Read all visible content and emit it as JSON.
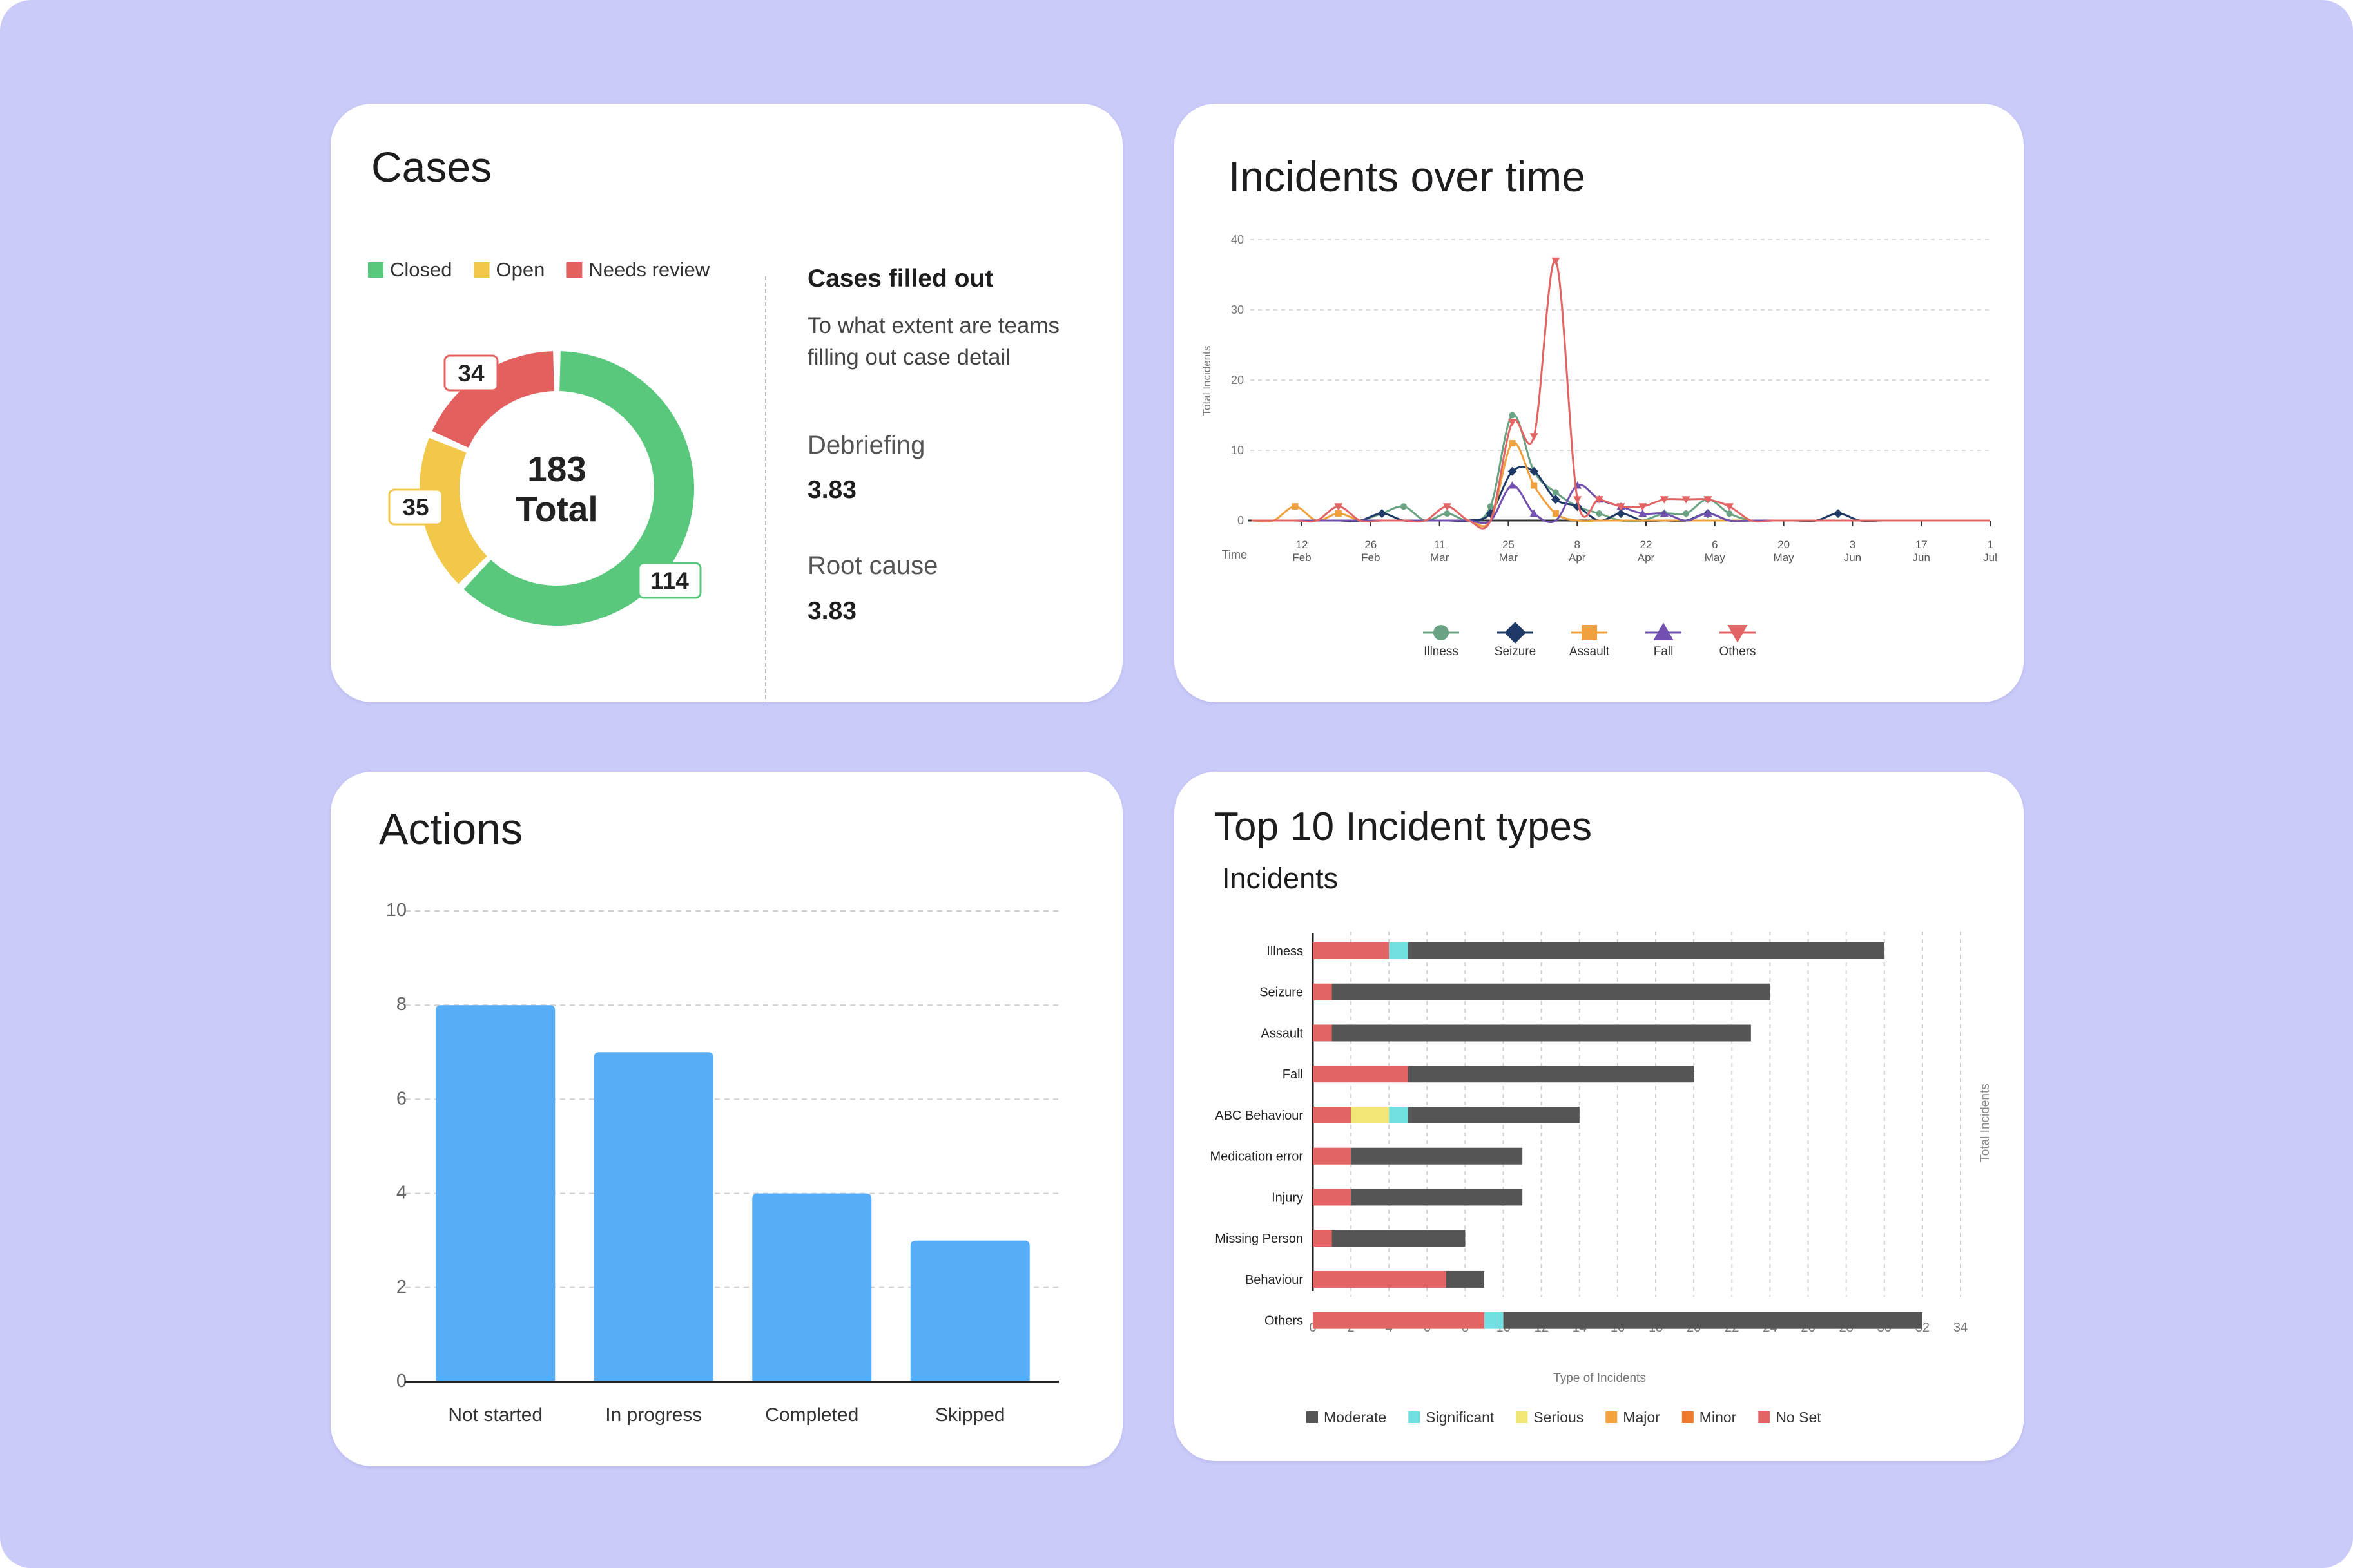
{
  "cases": {
    "title": "Cases",
    "legend": [
      {
        "label": "Closed",
        "color": "#5ac87c"
      },
      {
        "label": "Open",
        "color": "#f2c84b"
      },
      {
        "label": "Needs review",
        "color": "#e3605f"
      }
    ],
    "total_value": "183",
    "total_label": "Total",
    "side_title": "Cases filled out",
    "side_desc": "To what extent are teams filling out case detail",
    "metrics": [
      {
        "label": "Debriefing",
        "value": "3.83"
      },
      {
        "label": "Root cause",
        "value": "3.83"
      }
    ],
    "chart_data": {
      "type": "pie",
      "labels": [
        "Closed",
        "Open",
        "Needs review"
      ],
      "values": [
        114,
        35,
        34
      ],
      "colors": [
        "#5ac87c",
        "#f2c84b",
        "#e3605f"
      ]
    }
  },
  "incidents_over_time": {
    "title": "Incidents over time",
    "chart_data": {
      "type": "line",
      "ylabel": "Total Incidents",
      "xlabel": "Time",
      "ylim": [
        0,
        40
      ],
      "yticks": [
        "0",
        "10",
        "20",
        "30",
        "40"
      ],
      "xticks": [
        [
          "12",
          "Feb"
        ],
        [
          "26",
          "Feb"
        ],
        [
          "11",
          "Mar"
        ],
        [
          "25",
          "Mar"
        ],
        [
          "8",
          "Apr"
        ],
        [
          "22",
          "Apr"
        ],
        [
          "6",
          "May"
        ],
        [
          "20",
          "May"
        ],
        [
          "3",
          "Jun"
        ],
        [
          "17",
          "Jun"
        ],
        [
          "1",
          "Jul"
        ]
      ],
      "series": [
        {
          "name": "Illness",
          "color": "#6aa383",
          "marker": "circle",
          "values": [
            0,
            0,
            0,
            0,
            0,
            0,
            1,
            2,
            0,
            1,
            0,
            2,
            15,
            7,
            4,
            2,
            1,
            0,
            0,
            1,
            1,
            3,
            1,
            0,
            0,
            0,
            0,
            0,
            0,
            0,
            0,
            0,
            0,
            0,
            0
          ]
        },
        {
          "name": "Seizure",
          "color": "#1f3a66",
          "marker": "diamond",
          "values": [
            0,
            0,
            0,
            0,
            0,
            0,
            1,
            0,
            0,
            0,
            0,
            1,
            7,
            7,
            3,
            2,
            0,
            1,
            0,
            0,
            0,
            1,
            0,
            0,
            0,
            0,
            0,
            1,
            0,
            0,
            0,
            0,
            0,
            0,
            0
          ]
        },
        {
          "name": "Assault",
          "color": "#f0a03c",
          "marker": "square",
          "values": [
            0,
            0,
            2,
            0,
            1,
            0,
            0,
            0,
            0,
            0,
            0,
            0,
            11,
            5,
            1,
            0,
            0,
            0,
            0,
            0,
            0,
            0,
            0,
            0,
            0,
            0,
            0,
            0,
            0,
            0,
            0,
            0,
            0,
            0,
            0
          ]
        },
        {
          "name": "Fall",
          "color": "#7150b0",
          "marker": "triangle-up",
          "values": [
            0,
            0,
            0,
            0,
            0,
            0,
            0,
            0,
            0,
            0,
            0,
            0,
            5,
            1,
            0,
            5,
            3,
            2,
            1,
            1,
            0,
            1,
            0,
            0,
            0,
            0,
            0,
            0,
            0,
            0,
            0,
            0,
            0,
            0,
            0
          ]
        },
        {
          "name": "Others",
          "color": "#e36464",
          "marker": "triangle-down",
          "values": [
            0,
            0,
            0,
            0,
            2,
            0,
            0,
            0,
            0,
            2,
            0,
            0,
            14,
            12,
            37,
            3,
            3,
            2,
            2,
            3,
            3,
            3,
            2,
            0,
            0,
            0,
            0,
            0,
            0,
            0,
            0,
            0,
            0,
            0,
            0
          ]
        }
      ]
    }
  },
  "actions": {
    "title": "Actions",
    "chart_data": {
      "type": "bar",
      "categories": [
        "Not started",
        "In progress",
        "Completed",
        "Skipped"
      ],
      "values": [
        8,
        7,
        4,
        3
      ],
      "ylim": [
        0,
        10
      ],
      "yticks": [
        "0",
        "2",
        "4",
        "6",
        "8",
        "10"
      ],
      "color": "#58aef6"
    }
  },
  "top_incidents": {
    "title": "Top 10 Incident types",
    "subtitle": "Incidents",
    "chart_data": {
      "type": "bar",
      "orientation": "horizontal",
      "stacked": true,
      "categories": [
        "Illness",
        "Seizure",
        "Assault",
        "Fall",
        "ABC Behaviour",
        "Medication error",
        "Injury",
        "Missing Person",
        "Behaviour",
        "Others"
      ],
      "xlabel": "Type of Incidents",
      "ylabel": "Total Incidents",
      "xlim": [
        0,
        34
      ],
      "xticks": [
        "0",
        "2",
        "4",
        "6",
        "8",
        "10",
        "12",
        "14",
        "16",
        "18",
        "20",
        "22",
        "24",
        "26",
        "28",
        "30",
        "32",
        "34"
      ],
      "series": [
        {
          "name": "No Set",
          "color": "#e36464",
          "values": [
            4,
            1,
            1,
            5,
            2,
            2,
            2,
            1,
            7,
            9
          ]
        },
        {
          "name": "Serious",
          "color": "#f1e676",
          "values": [
            0,
            0,
            0,
            0,
            2,
            0,
            0,
            0,
            0,
            0
          ]
        },
        {
          "name": "Significant",
          "color": "#72e0e0",
          "values": [
            1,
            0,
            0,
            0,
            1,
            0,
            0,
            0,
            0,
            1
          ]
        },
        {
          "name": "Moderate",
          "color": "#555555",
          "values": [
            25,
            23,
            22,
            15,
            9,
            9,
            9,
            7,
            2,
            22
          ]
        },
        {
          "name": "Major",
          "color": "#f2a33d",
          "values": [
            0,
            0,
            0,
            0,
            0,
            0,
            0,
            0,
            0,
            0
          ]
        },
        {
          "name": "Minor",
          "color": "#ef7a2c",
          "values": [
            0,
            0,
            0,
            0,
            0,
            0,
            0,
            0,
            0,
            0
          ]
        }
      ],
      "legend_order": [
        "Moderate",
        "Significant",
        "Serious",
        "Major",
        "Minor",
        "No Set"
      ]
    }
  }
}
